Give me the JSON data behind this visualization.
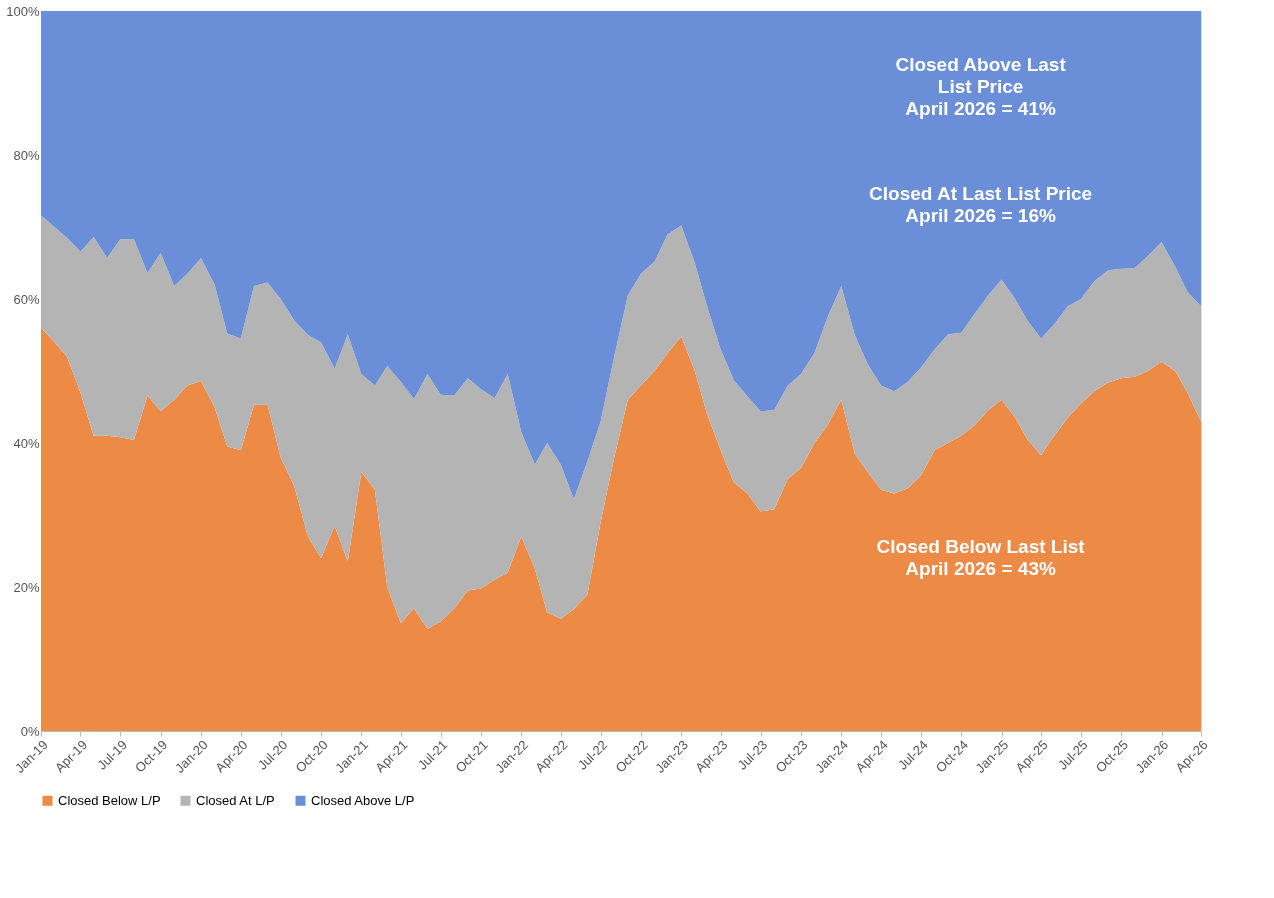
{
  "chart_data": {
    "type": "area",
    "stacked": true,
    "x": [
      "2019-01",
      "2019-02",
      "2019-03",
      "2019-04",
      "2019-05",
      "2019-06",
      "2019-07",
      "2019-08",
      "2019-09",
      "2019-10",
      "2019-11",
      "2019-12",
      "2020-01",
      "2020-02",
      "2020-03",
      "2020-04",
      "2020-05",
      "2020-06",
      "2020-07",
      "2020-08",
      "2020-09",
      "2020-10",
      "2020-11",
      "2020-12",
      "2021-01",
      "2021-02",
      "2021-03",
      "2021-04",
      "2021-05",
      "2021-06",
      "2021-07",
      "2021-08",
      "2021-09",
      "2021-10",
      "2021-11",
      "2021-12",
      "2022-01",
      "2022-02",
      "2022-03",
      "2022-04",
      "2022-05",
      "2022-06",
      "2022-07",
      "2022-08",
      "2022-09",
      "2022-10",
      "2022-11",
      "2022-12",
      "2023-01",
      "2023-02",
      "2023-03",
      "2023-04",
      "2023-05",
      "2023-06",
      "2023-07",
      "2023-08",
      "2023-09",
      "2023-10",
      "2023-11",
      "2023-12",
      "2024-01",
      "2024-02",
      "2024-03",
      "2024-04",
      "2024-05",
      "2024-06",
      "2024-07",
      "2024-08",
      "2024-09",
      "2024-10",
      "2024-11",
      "2024-12",
      "2025-01",
      "2025-02",
      "2025-03",
      "2025-04",
      "2025-05",
      "2025-06",
      "2025-07",
      "2025-08",
      "2025-09",
      "2025-10",
      "2025-11",
      "2025-12",
      "2026-01",
      "2026-02",
      "2026-03",
      "2026-04"
    ],
    "series": [
      {
        "name": "Closed Below L/P",
        "color": "#ed8a45",
        "values": [
          56,
          54,
          52,
          47,
          41,
          41,
          40.8,
          40.4,
          46.6,
          44.4,
          46,
          48,
          48.6,
          45,
          39.5,
          39,
          45.3,
          45.3,
          38,
          34,
          27,
          24,
          28.5,
          23.5,
          36,
          33.5,
          20,
          15,
          17,
          14.2,
          15.2,
          17,
          19.5,
          19.8,
          21,
          22,
          27,
          22.5,
          16.5,
          15.6,
          16.9,
          19,
          29,
          38,
          46,
          48,
          50,
          52.5,
          54.8,
          50,
          44,
          39,
          34.5,
          33,
          30.5,
          30.8,
          35,
          36.5,
          40,
          42.5,
          46,
          38.5,
          36,
          33.5,
          33,
          33.7,
          35.5,
          39,
          40,
          41,
          42.5,
          44.5,
          46,
          43.5,
          40.5,
          38.3,
          41,
          43.5,
          45.5,
          47.2,
          48.4,
          49,
          49.2,
          50,
          51.3,
          50,
          47,
          43
        ]
      },
      {
        "name": "Closed At L/P",
        "color": "#b4b4b4",
        "values": [
          15.6,
          16,
          16.5,
          19.6,
          27.6,
          24.7,
          27.5,
          27.9,
          17,
          22,
          15.8,
          15.5,
          17.1,
          17,
          15.7,
          15.5,
          16.5,
          17,
          22,
          23,
          28,
          30,
          21.8,
          31.6,
          13.6,
          14.5,
          30.7,
          33.5,
          29.1,
          35.4,
          31.5,
          29.6,
          29.5,
          27.7,
          25.2,
          27.6,
          14.5,
          14.5,
          23.5,
          21.4,
          15.3,
          18.5,
          14,
          14,
          14.5,
          15.5,
          15.2,
          16.5,
          15.4,
          15,
          15,
          14,
          14.2,
          13.5,
          13.9,
          13.8,
          13,
          13.1,
          12.5,
          15,
          15.8,
          16.5,
          15,
          14.5,
          14.2,
          14.8,
          15,
          14,
          15.1,
          14.3,
          15.5,
          16,
          16.7,
          16.5,
          16.5,
          16.2,
          15.5,
          15.5,
          14.5,
          15.3,
          15.6,
          15.2,
          15.1,
          16,
          16.6,
          14.5,
          14,
          16
        ]
      },
      {
        "name": "Closed Above L/P",
        "color": "#6a8fd8",
        "values": [
          28.4,
          30,
          31.5,
          33.4,
          31.4,
          34.3,
          31.7,
          31.7,
          36.4,
          33.6,
          38.2,
          36.5,
          34.3,
          38,
          44.8,
          45.5,
          38.2,
          37.7,
          40,
          43,
          45,
          46,
          49.7,
          44.9,
          50.4,
          52,
          49.3,
          51.5,
          53.9,
          50.4,
          53.3,
          53.4,
          51,
          52.5,
          53.8,
          50.4,
          58.5,
          63,
          60,
          63,
          67.8,
          62.5,
          57,
          48,
          39.5,
          36.5,
          34.8,
          31,
          29.8,
          35,
          41,
          47,
          51.3,
          53.5,
          55.6,
          55.4,
          52,
          50.4,
          47.5,
          42.5,
          38.2,
          45,
          49,
          52,
          52.8,
          51.5,
          49.5,
          47,
          44.9,
          44.7,
          42,
          39.5,
          37.3,
          40,
          43,
          45.5,
          43.5,
          41,
          40,
          37.5,
          36,
          35.8,
          35.7,
          34,
          32.1,
          35.5,
          39,
          41
        ]
      }
    ],
    "xlim": [
      "2019-01",
      "2026-04"
    ],
    "xticks": [
      {
        "value": "2019-01",
        "label": "Jan-19"
      },
      {
        "value": "2019-04",
        "label": "Apr-19"
      },
      {
        "value": "2019-07",
        "label": "Jul-19"
      },
      {
        "value": "2019-10",
        "label": "Oct-19"
      },
      {
        "value": "2020-01",
        "label": "Jan-20"
      },
      {
        "value": "2020-04",
        "label": "Apr-20"
      },
      {
        "value": "2020-07",
        "label": "Jul-20"
      },
      {
        "value": "2020-10",
        "label": "Oct-20"
      },
      {
        "value": "2021-01",
        "label": "Jan-21"
      },
      {
        "value": "2021-04",
        "label": "Apr-21"
      },
      {
        "value": "2021-07",
        "label": "Jul-21"
      },
      {
        "value": "2021-10",
        "label": "Oct-21"
      },
      {
        "value": "2022-01",
        "label": "Jan-22"
      },
      {
        "value": "2022-04",
        "label": "Apr-22"
      },
      {
        "value": "2022-07",
        "label": "Jul-22"
      },
      {
        "value": "2022-10",
        "label": "Oct-22"
      },
      {
        "value": "2023-01",
        "label": "Jan-23"
      },
      {
        "value": "2023-04",
        "label": "Apr-23"
      },
      {
        "value": "2023-07",
        "label": "Jul-23"
      },
      {
        "value": "2023-10",
        "label": "Oct-23"
      },
      {
        "value": "2024-01",
        "label": "Jan-24"
      },
      {
        "value": "2024-04",
        "label": "Apr-24"
      },
      {
        "value": "2024-07",
        "label": "Jul-24"
      },
      {
        "value": "2024-10",
        "label": "Oct-24"
      },
      {
        "value": "2025-01",
        "label": "Jan-25"
      },
      {
        "value": "2025-04",
        "label": "Apr-25"
      },
      {
        "value": "2025-07",
        "label": "Jul-25"
      },
      {
        "value": "2025-10",
        "label": "Oct-25"
      },
      {
        "value": "2026-01",
        "label": "Jan-26"
      },
      {
        "value": "2026-04",
        "label": "Apr-26"
      }
    ],
    "ylim": [
      0,
      100
    ],
    "yticks": [
      {
        "value": 0,
        "label": "0%"
      },
      {
        "value": 20,
        "label": "20%"
      },
      {
        "value": 40,
        "label": "40%"
      },
      {
        "value": 60,
        "label": "60%"
      },
      {
        "value": 80,
        "label": "80%"
      },
      {
        "value": 100,
        "label": "100%"
      }
    ],
    "grid": false,
    "legend": "bottom",
    "annotations": [
      "Closed Above Last\nList Price\nApril 2026 = 41%",
      "Closed At Last List Price\nApril 2026 = 16%",
      "Closed Below Last List\nApril 2026 = 43%"
    ]
  }
}
